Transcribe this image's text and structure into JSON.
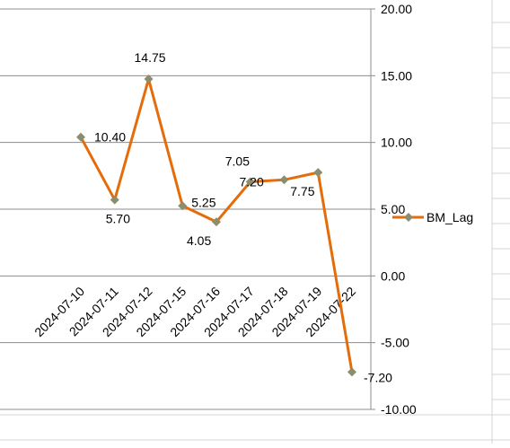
{
  "chart_data": {
    "type": "line",
    "categories": [
      "2024-07-10",
      "2024-07-11",
      "2024-07-12",
      "2024-07-15",
      "2024-07-16",
      "2024-07-17",
      "2024-07-18",
      "2024-07-19",
      "2024-07-22"
    ],
    "series": [
      {
        "name": "BM_Lag",
        "values": [
          10.4,
          5.7,
          14.75,
          5.25,
          4.05,
          7.05,
          7.2,
          7.75,
          -7.2
        ],
        "data_labels": [
          "10.40",
          "5.70",
          "14.75",
          "5.25",
          "4.05",
          "7.05",
          "7.20",
          "7.75",
          "-7.20"
        ],
        "color": "#E46C0A",
        "marker_color": "#8C8C6E",
        "marker": "diamond"
      }
    ],
    "y_ticks": [
      "20.00",
      "15.00",
      "10.00",
      "5.00",
      "0.00",
      "-5.00",
      "-10.00"
    ],
    "ylim": [
      -10,
      20
    ],
    "y_axis_side": "right",
    "grid": true,
    "legend": "right"
  }
}
